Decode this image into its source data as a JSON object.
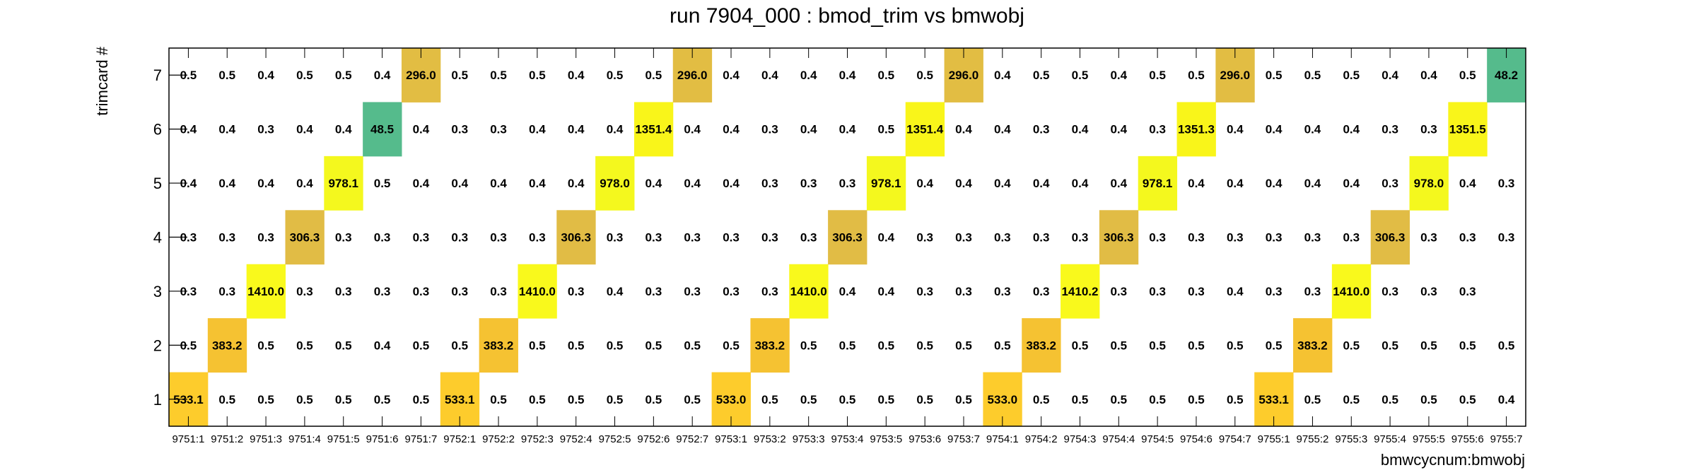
{
  "chart_data": {
    "type": "heatmap",
    "title": "run 7904_000 : bmod_trim vs bmwobj",
    "xlabel": "bmwcycnum:bmwobj",
    "ylabel": "trimcard #",
    "x_categories": [
      "9751:1",
      "9751:2",
      "9751:3",
      "9751:4",
      "9751:5",
      "9751:6",
      "9751:7",
      "9752:1",
      "9752:2",
      "9752:3",
      "9752:4",
      "9752:5",
      "9752:6",
      "9752:7",
      "9753:1",
      "9753:2",
      "9753:3",
      "9753:4",
      "9753:5",
      "9753:6",
      "9753:7",
      "9754:1",
      "9754:2",
      "9754:3",
      "9754:4",
      "9754:5",
      "9754:6",
      "9754:7",
      "9755:1",
      "9755:2",
      "9755:3",
      "9755:4",
      "9755:5",
      "9755:6",
      "9755:7"
    ],
    "y_categories": [
      "1",
      "2",
      "3",
      "4",
      "5",
      "6",
      "7"
    ],
    "rows": [
      [
        "533.1",
        "0.5",
        "0.5",
        "0.5",
        "0.5",
        "0.5",
        "0.5",
        "533.1",
        "0.5",
        "0.5",
        "0.5",
        "0.5",
        "0.5",
        "0.5",
        "533.0",
        "0.5",
        "0.5",
        "0.5",
        "0.5",
        "0.5",
        "0.5",
        "533.0",
        "0.5",
        "0.5",
        "0.5",
        "0.5",
        "0.5",
        "0.5",
        "533.1",
        "0.5",
        "0.5",
        "0.5",
        "0.5",
        "0.5",
        "0.4"
      ],
      [
        "0.5",
        "383.2",
        "0.5",
        "0.5",
        "0.5",
        "0.4",
        "0.5",
        "0.5",
        "383.2",
        "0.5",
        "0.5",
        "0.5",
        "0.5",
        "0.5",
        "0.5",
        "383.2",
        "0.5",
        "0.5",
        "0.5",
        "0.5",
        "0.5",
        "0.5",
        "383.2",
        "0.5",
        "0.5",
        "0.5",
        "0.5",
        "0.5",
        "0.5",
        "383.2",
        "0.5",
        "0.5",
        "0.5",
        "0.5",
        "0.5"
      ],
      [
        "0.3",
        "0.3",
        "1410.0",
        "0.3",
        "0.3",
        "0.3",
        "0.3",
        "0.3",
        "0.3",
        "1410.0",
        "0.3",
        "0.4",
        "0.3",
        "0.3",
        "0.3",
        "0.3",
        "1410.0",
        "0.4",
        "0.4",
        "0.3",
        "0.3",
        "0.3",
        "0.3",
        "1410.2",
        "0.3",
        "0.3",
        "0.3",
        "0.4",
        "0.3",
        "0.3",
        "1410.0",
        "0.3",
        "0.3",
        "0.3",
        ""
      ],
      [
        "0.3",
        "0.3",
        "0.3",
        "306.3",
        "0.3",
        "0.3",
        "0.3",
        "0.3",
        "0.3",
        "0.3",
        "306.3",
        "0.3",
        "0.3",
        "0.3",
        "0.3",
        "0.3",
        "0.3",
        "306.3",
        "0.4",
        "0.3",
        "0.3",
        "0.3",
        "0.3",
        "0.3",
        "306.3",
        "0.3",
        "0.3",
        "0.3",
        "0.3",
        "0.3",
        "0.3",
        "306.3",
        "0.3",
        "0.3",
        "0.3"
      ],
      [
        "0.4",
        "0.4",
        "0.4",
        "0.4",
        "978.1",
        "0.5",
        "0.4",
        "0.4",
        "0.4",
        "0.4",
        "0.4",
        "978.0",
        "0.4",
        "0.4",
        "0.4",
        "0.3",
        "0.3",
        "0.3",
        "978.1",
        "0.4",
        "0.4",
        "0.4",
        "0.4",
        "0.4",
        "0.4",
        "978.1",
        "0.4",
        "0.4",
        "0.4",
        "0.4",
        "0.4",
        "0.3",
        "978.0",
        "0.4",
        "0.3"
      ],
      [
        "0.4",
        "0.4",
        "0.3",
        "0.4",
        "0.4",
        "48.5",
        "0.4",
        "0.3",
        "0.3",
        "0.4",
        "0.4",
        "0.4",
        "1351.4",
        "0.4",
        "0.4",
        "0.3",
        "0.4",
        "0.4",
        "0.5",
        "1351.4",
        "0.4",
        "0.4",
        "0.3",
        "0.4",
        "0.4",
        "0.3",
        "1351.3",
        "0.4",
        "0.4",
        "0.4",
        "0.4",
        "0.3",
        "0.3",
        "1351.5",
        ""
      ],
      [
        "0.5",
        "0.5",
        "0.4",
        "0.5",
        "0.5",
        "0.4",
        "296.0",
        "0.5",
        "0.5",
        "0.5",
        "0.4",
        "0.5",
        "0.5",
        "296.0",
        "0.4",
        "0.4",
        "0.4",
        "0.4",
        "0.5",
        "0.5",
        "296.0",
        "0.4",
        "0.5",
        "0.5",
        "0.4",
        "0.5",
        "0.5",
        "296.0",
        "0.5",
        "0.5",
        "0.5",
        "0.4",
        "0.4",
        "0.5",
        "48.2"
      ]
    ],
    "colors": {
      "1410": "#f9f91c",
      "1351": "#f9f51a",
      "978": "#f4f81e",
      "533": "#fdcc2c",
      "383": "#f5c232",
      "306": "#e1bc45",
      "296": "#e2bd43",
      "48": "#55bb8c",
      "frame": "#000000",
      "background": "#ffffff"
    },
    "grid": false,
    "legend": "none"
  }
}
